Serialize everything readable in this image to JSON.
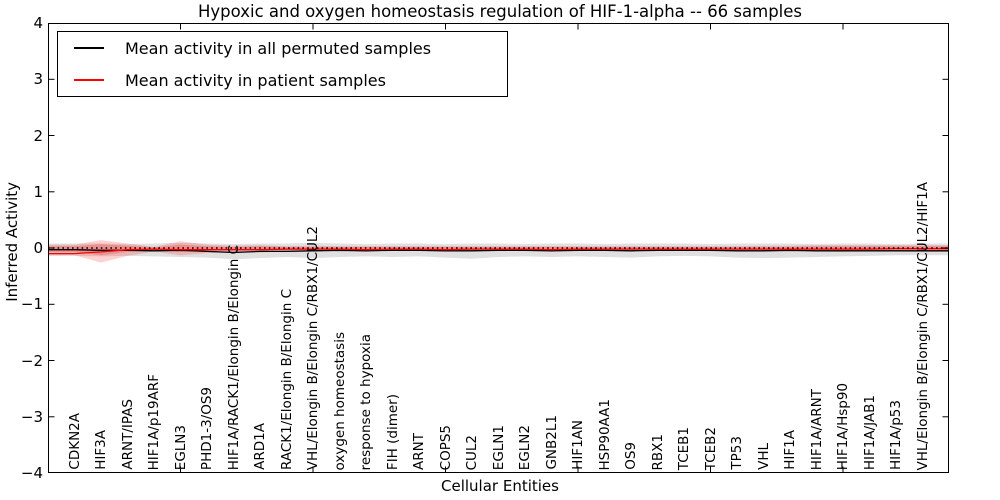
{
  "title": "Hypoxic and oxygen homeostasis regulation of HIF-1-alpha -- 66 samples",
  "axes": {
    "xlabel": "Cellular Entities",
    "ylabel": "Inferred Activity",
    "yticks": [
      "4",
      "3",
      "2",
      "1",
      "0",
      "−1",
      "−2",
      "−3",
      "−4"
    ],
    "ylim": [
      -4,
      4
    ]
  },
  "legend": {
    "entries": [
      {
        "label": "Mean activity in all permuted samples",
        "color": "#000000"
      },
      {
        "label": "Mean activity in patient samples",
        "color": "#ff0000"
      }
    ]
  },
  "chart_data": {
    "type": "line",
    "title": "Hypoxic and oxygen homeostasis regulation of HIF-1-alpha -- 66 samples",
    "xlabel": "Cellular Entities",
    "ylabel": "Inferred Activity",
    "ylim": [
      -4,
      4
    ],
    "grid": false,
    "legend_position": "upper left",
    "x_major_ticks": [
      5,
      10,
      15,
      20,
      25,
      30
    ],
    "zero_line": {
      "value": 0,
      "color": "#000000",
      "style": "dotted"
    },
    "categories": [
      "CDKN2A",
      "HIF3A",
      "ARNT/IPAS",
      "HIF1A/p19ARF",
      "EGLN3",
      "PHD1-3/OS9",
      "HIF1A/RACK1/Elongin B/Elongin C",
      "ARD1A",
      "RACK1/Elongin B/Elongin C",
      "VHL/Elongin B/Elongin C/RBX1/CUL2",
      "oxygen homeostasis",
      "response to hypoxia",
      "FIH (dimer)",
      "ARNT",
      "COPS5",
      "CUL2",
      "EGLN1",
      "EGLN2",
      "GNB2L1",
      "HIF1AN",
      "HSP90AA1",
      "OS9",
      "RBX1",
      "TCEB1",
      "TCEB2",
      "TP53",
      "VHL",
      "HIF1A",
      "HIF1A/ARNT",
      "HIF1A/Hsp90",
      "HIF1A/JAB1",
      "HIF1A/p53",
      "VHL/Elongin B/Elongin C/RBX1/CUL2/HIF1A"
    ],
    "series": [
      {
        "name": "Mean activity in all permuted samples",
        "color": "#000000",
        "width": 1.3,
        "values": [
          -0.03,
          -0.04,
          -0.04,
          -0.05,
          -0.04,
          -0.06,
          -0.08,
          -0.06,
          -0.06,
          -0.05,
          -0.04,
          -0.05,
          -0.04,
          -0.04,
          -0.05,
          -0.05,
          -0.04,
          -0.04,
          -0.05,
          -0.04,
          -0.04,
          -0.05,
          -0.04,
          -0.04,
          -0.04,
          -0.05,
          -0.05,
          -0.04,
          -0.05,
          -0.05,
          -0.05,
          -0.05,
          -0.05
        ]
      },
      {
        "name": "Mean activity in patient samples",
        "color": "#ff0000",
        "width": 1.3,
        "values": [
          -0.1,
          -0.07,
          -0.03,
          -0.02,
          -0.03,
          -0.03,
          -0.03,
          -0.03,
          -0.02,
          -0.02,
          -0.02,
          -0.03,
          -0.02,
          -0.02,
          -0.03,
          -0.02,
          -0.02,
          -0.02,
          -0.03,
          -0.02,
          -0.02,
          -0.02,
          -0.02,
          -0.02,
          -0.02,
          -0.02,
          -0.02,
          -0.02,
          -0.02,
          -0.02,
          -0.02,
          -0.01,
          -0.01
        ]
      }
    ],
    "bands": [
      {
        "name": "permuted-activity-envelope",
        "color": "#000000",
        "opacity": 0.12,
        "upper": [
          0.08,
          0.08,
          0.07,
          0.08,
          0.09,
          0.08,
          0.07,
          0.08,
          0.08,
          0.09,
          0.08,
          0.07,
          0.08,
          0.08,
          0.07,
          0.08,
          0.08,
          0.07,
          0.08,
          0.08,
          0.07,
          0.08,
          0.08,
          0.08,
          0.07,
          0.08,
          0.08,
          0.08,
          0.07,
          0.08,
          0.08,
          0.07,
          0.08
        ],
        "lower": [
          -0.14,
          -0.15,
          -0.14,
          -0.15,
          -0.16,
          -0.17,
          -0.2,
          -0.18,
          -0.16,
          -0.18,
          -0.16,
          -0.15,
          -0.16,
          -0.15,
          -0.17,
          -0.19,
          -0.16,
          -0.15,
          -0.16,
          -0.15,
          -0.16,
          -0.17,
          -0.15,
          -0.14,
          -0.15,
          -0.17,
          -0.18,
          -0.17,
          -0.16,
          -0.15,
          -0.14,
          -0.13,
          -0.13
        ]
      },
      {
        "name": "patient-activity-envelope-outer",
        "color": "#ff0000",
        "opacity": 0.18,
        "upper": [
          0.06,
          0.14,
          0.08,
          0.02,
          0.12,
          0.06,
          0.04,
          0.05,
          0.03,
          0.04,
          0.03,
          0.03,
          0.03,
          0.03,
          0.03,
          0.03,
          0.03,
          0.03,
          0.03,
          0.03,
          0.03,
          0.03,
          0.03,
          0.03,
          0.03,
          0.03,
          0.04,
          0.04,
          0.05,
          0.05,
          0.05,
          0.05,
          0.05
        ],
        "lower": [
          -0.13,
          -0.26,
          -0.14,
          -0.06,
          -0.13,
          -0.09,
          -0.07,
          -0.08,
          -0.06,
          -0.05,
          -0.05,
          -0.05,
          -0.05,
          -0.05,
          -0.05,
          -0.05,
          -0.05,
          -0.05,
          -0.05,
          -0.05,
          -0.05,
          -0.05,
          -0.05,
          -0.05,
          -0.05,
          -0.05,
          -0.06,
          -0.06,
          -0.06,
          -0.07,
          -0.06,
          -0.06,
          -0.07
        ]
      },
      {
        "name": "patient-activity-envelope-inner",
        "color": "#ff0000",
        "opacity": 0.22,
        "upper": [
          0.03,
          0.07,
          0.04,
          0.01,
          0.06,
          0.03,
          0.02,
          0.03,
          0.02,
          0.02,
          0.02,
          0.02,
          0.02,
          0.02,
          0.02,
          0.02,
          0.02,
          0.02,
          0.02,
          0.02,
          0.02,
          0.02,
          0.02,
          0.02,
          0.02,
          0.02,
          0.02,
          0.02,
          0.03,
          0.03,
          0.03,
          0.03,
          0.03
        ],
        "lower": [
          -0.07,
          -0.13,
          -0.07,
          -0.03,
          -0.07,
          -0.05,
          -0.04,
          -0.04,
          -0.03,
          -0.03,
          -0.03,
          -0.03,
          -0.03,
          -0.03,
          -0.03,
          -0.03,
          -0.03,
          -0.03,
          -0.03,
          -0.03,
          -0.03,
          -0.03,
          -0.03,
          -0.03,
          -0.03,
          -0.03,
          -0.03,
          -0.03,
          -0.03,
          -0.04,
          -0.03,
          -0.03,
          -0.04
        ]
      }
    ]
  }
}
